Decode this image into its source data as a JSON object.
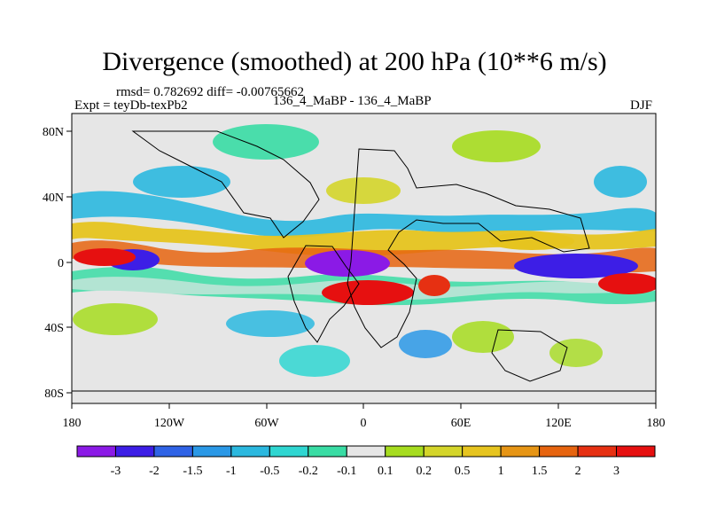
{
  "title": "Divergence (smoothed) at 200 hPa (10**6 m/s)",
  "stats_text": "rmsd= 0.782692 diff= -0.00765662",
  "experiment_text": "Expt = teyDb-texPb2",
  "center_label": "136_4_MaBP - 136_4_MaBP",
  "season": "DJF",
  "axes": {
    "x_tick_labels": [
      "180",
      "120W",
      "60W",
      "0",
      "60E",
      "120E",
      "180"
    ],
    "y_tick_labels": [
      "80N",
      "40N",
      "0",
      "40S",
      "80S"
    ]
  },
  "colorbar": {
    "labels": [
      "-3",
      "-2",
      "-1.5",
      "-1",
      "-0.5",
      "-0.2",
      "-0.1",
      "0.1",
      "0.2",
      "0.5",
      "1",
      "1.5",
      "2",
      "3"
    ],
    "colors": [
      "#8b1ae6",
      "#3d1ee6",
      "#2f63e6",
      "#2a98e6",
      "#2bb8df",
      "#2fd6d1",
      "#39dca4",
      "#e6e6e6",
      "#a6dc1f",
      "#d4d52a",
      "#e6c41f",
      "#e69515",
      "#e6640f",
      "#e63012",
      "#e61010"
    ]
  }
}
